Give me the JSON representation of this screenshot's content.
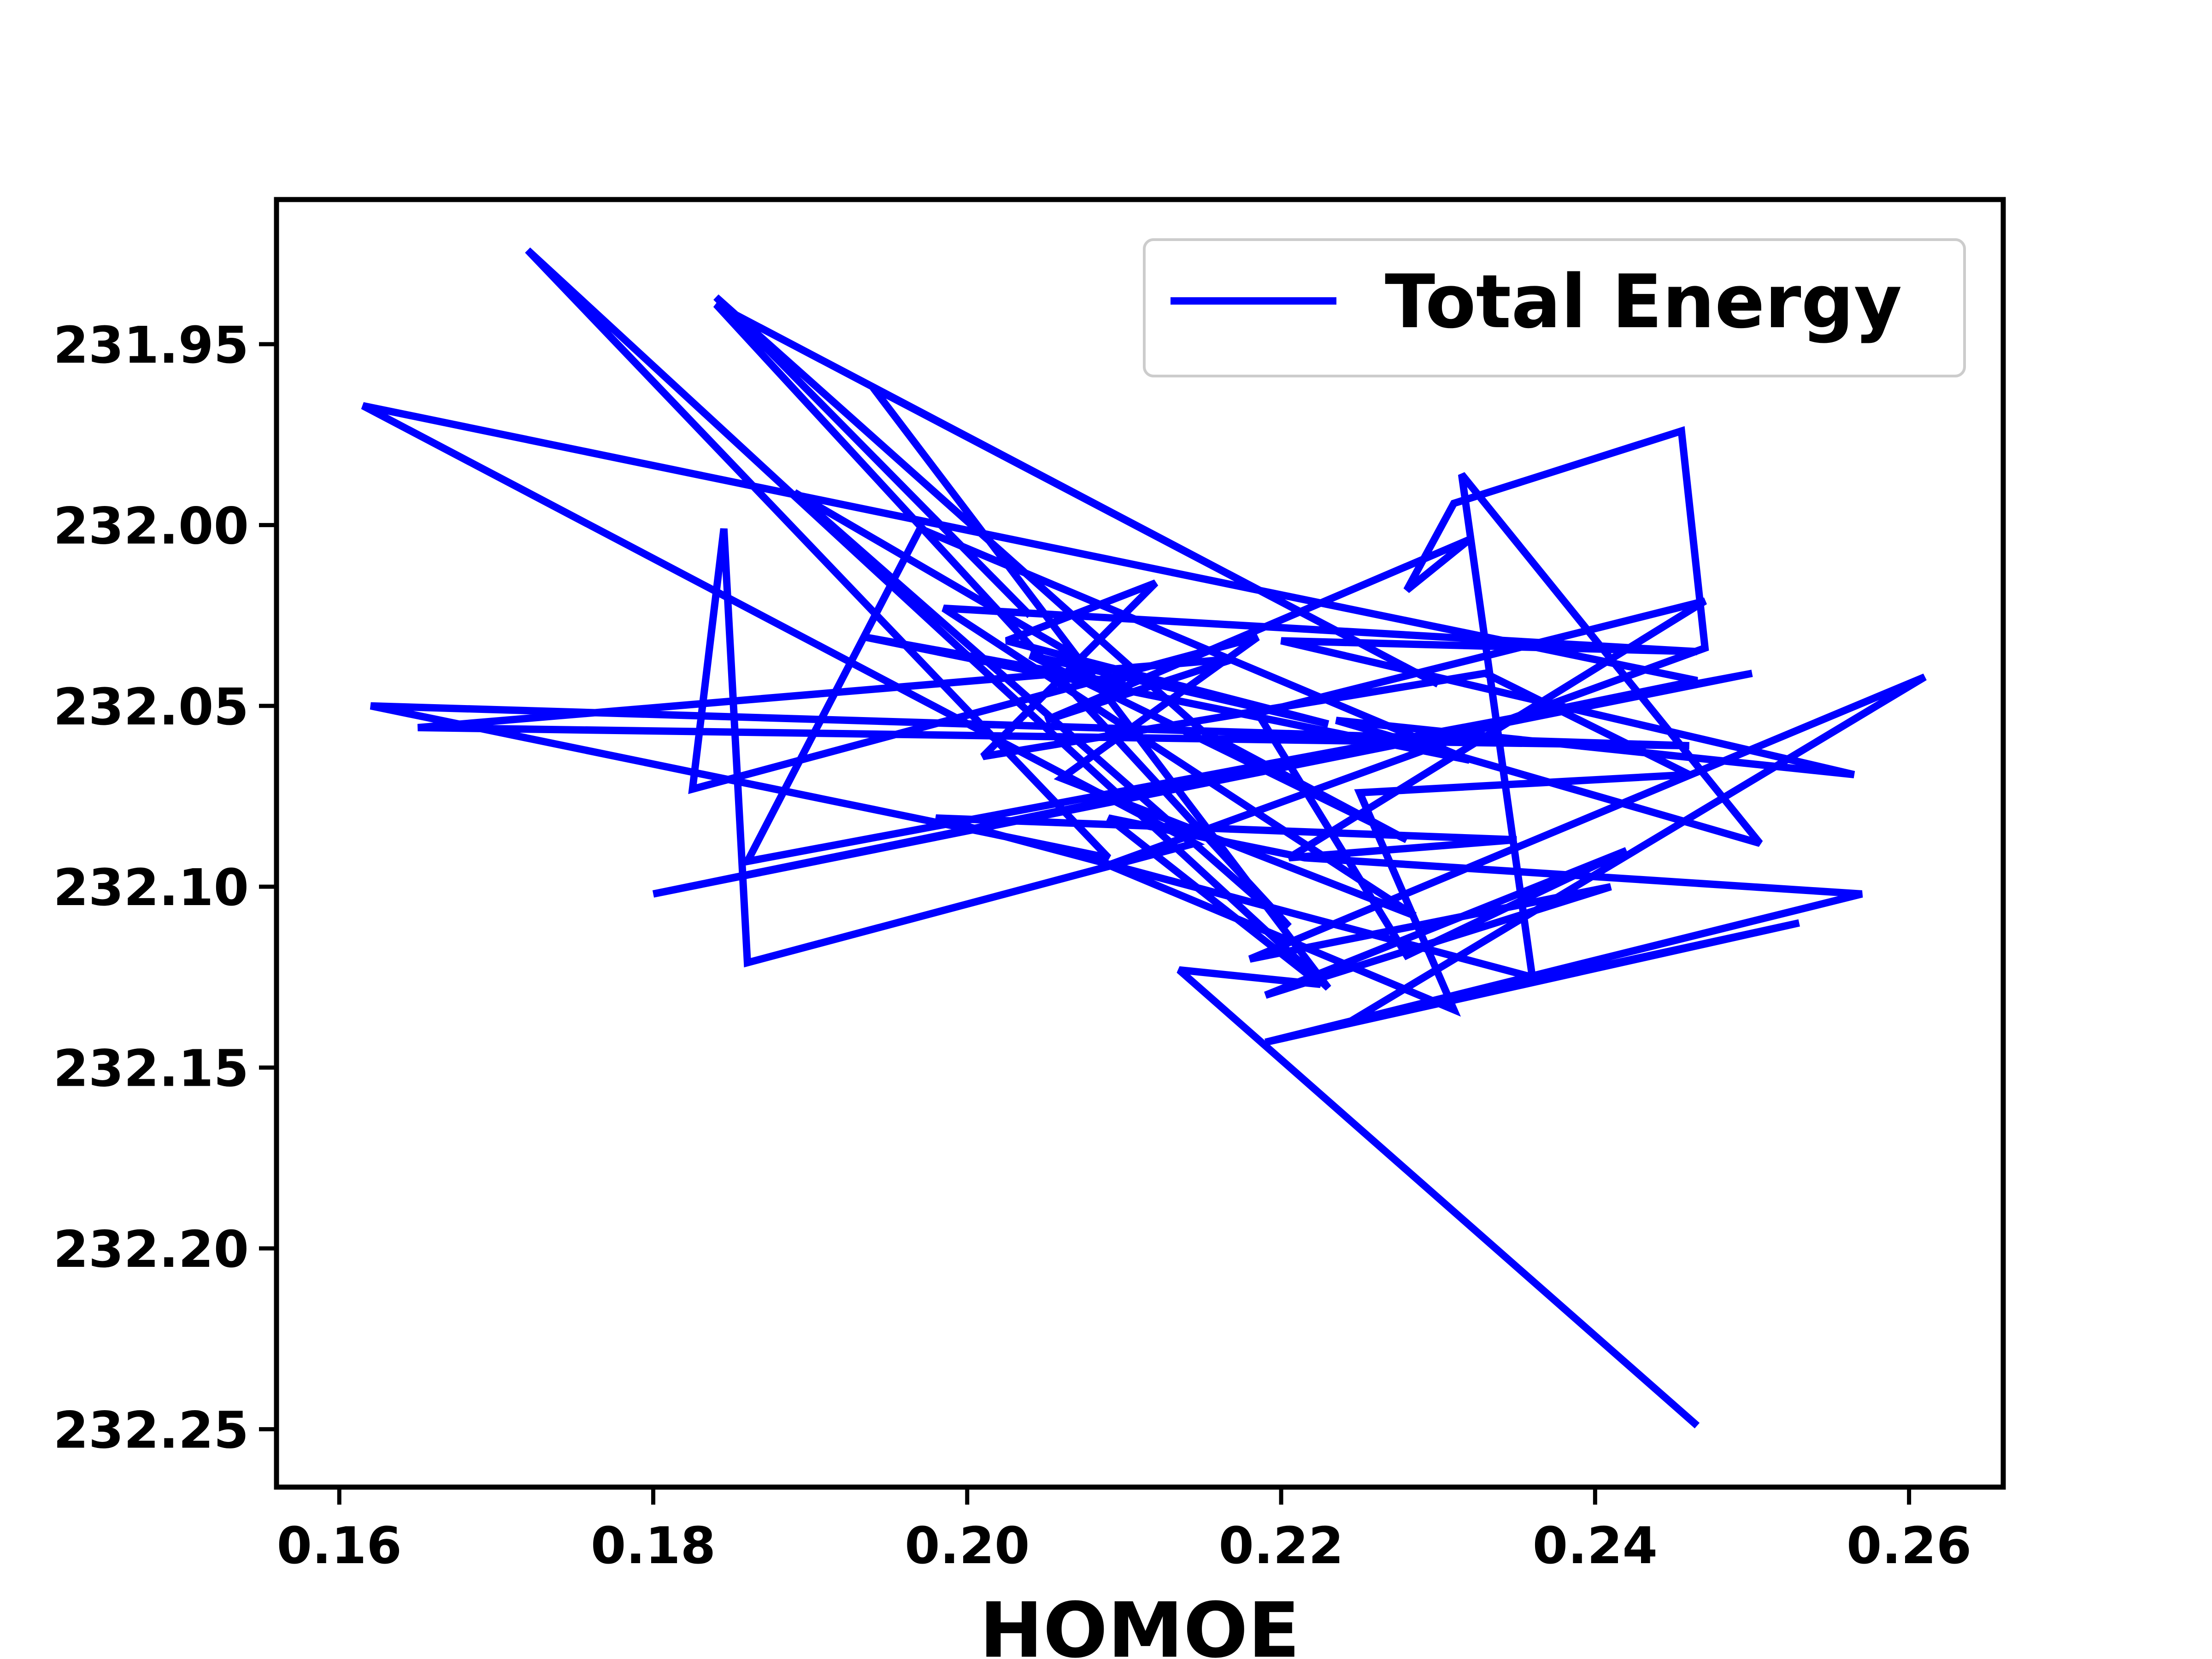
{
  "chart_data": {
    "type": "line",
    "title": "",
    "xlabel": "HOMOE",
    "ylabel": "",
    "xlim": [
      0.156,
      0.266
    ],
    "ylim": [
      232.266,
      231.91
    ],
    "y_inverted": true,
    "x_ticks": [
      0.16,
      0.18,
      0.2,
      0.22,
      0.24,
      0.26
    ],
    "x_tick_labels": [
      "0.16",
      "0.18",
      "0.20",
      "0.22",
      "0.24",
      "0.26"
    ],
    "y_ticks": [
      231.95,
      232.0,
      232.05,
      232.1,
      232.15,
      232.2,
      232.25
    ],
    "y_tick_labels": [
      "231.95",
      "232.00",
      "232.05",
      "232.10",
      "232.15",
      "232.20",
      "232.25"
    ],
    "grid": false,
    "legend_position": "top-right",
    "series": [
      {
        "name": "Total Energy",
        "color": "#0000ff",
        "points": [
          [
            0.2465,
            232.249
          ],
          [
            0.2135,
            232.123
          ],
          [
            0.2225,
            232.127
          ],
          [
            0.209,
            232.081
          ],
          [
            0.2215,
            232.092
          ],
          [
            0.257,
            232.102
          ],
          [
            0.219,
            232.143
          ],
          [
            0.253,
            232.11
          ],
          [
            0.2245,
            232.137
          ],
          [
            0.261,
            232.042
          ],
          [
            0.218,
            232.12
          ],
          [
            0.241,
            232.1
          ],
          [
            0.219,
            232.13
          ],
          [
            0.242,
            232.09
          ],
          [
            0.228,
            232.119
          ],
          [
            0.2185,
            232.052
          ],
          [
            0.247,
            232.021
          ],
          [
            0.2205,
            232.092
          ],
          [
            0.235,
            232.087
          ],
          [
            0.198,
            232.081
          ],
          [
            0.236,
            232.125
          ],
          [
            0.2315,
            231.986
          ],
          [
            0.2505,
            232.088
          ],
          [
            0.2235,
            232.054
          ],
          [
            0.2565,
            232.069
          ],
          [
            0.22,
            232.032
          ],
          [
            0.2465,
            232.035
          ],
          [
            0.1985,
            232.023
          ],
          [
            0.2285,
            232.108
          ],
          [
            0.206,
            232.07
          ],
          [
            0.2185,
            232.031
          ],
          [
            0.1825,
            232.073
          ],
          [
            0.1845,
            232.001
          ],
          [
            0.186,
            232.121
          ],
          [
            0.2145,
            232.088
          ],
          [
            0.1615,
            231.967
          ],
          [
            0.2465,
            232.043
          ],
          [
            0.18,
            232.102
          ],
          [
            0.25,
            232.041
          ],
          [
            0.186,
            232.093
          ],
          [
            0.197,
            232.001
          ],
          [
            0.232,
            232.065
          ],
          [
            0.1935,
            232.031
          ],
          [
            0.21,
            232.044
          ],
          [
            0.189,
            231.991
          ],
          [
            0.2205,
            232.111
          ],
          [
            0.184,
            231.939
          ],
          [
            0.23,
            232.044
          ],
          [
            0.194,
            231.962
          ],
          [
            0.223,
            232.128
          ],
          [
            0.172,
            231.924
          ],
          [
            0.209,
            232.092
          ],
          [
            0.162,
            232.05
          ],
          [
            0.246,
            232.061
          ],
          [
            0.165,
            232.056
          ],
          [
            0.217,
            232.037
          ],
          [
            0.205,
            232.054
          ],
          [
            0.232,
            232.004
          ],
          [
            0.228,
            232.018
          ],
          [
            0.231,
            231.994
          ],
          [
            0.2455,
            231.974
          ],
          [
            0.247,
            232.034
          ],
          [
            0.209,
            232.094
          ],
          [
            0.231,
            232.134
          ],
          [
            0.225,
            232.074
          ],
          [
            0.246,
            232.069
          ],
          [
            0.233,
            232.041
          ],
          [
            0.201,
            232.064
          ],
          [
            0.212,
            232.016
          ],
          [
            0.2025,
            232.032
          ],
          [
            0.223,
            232.055
          ],
          [
            0.204,
            232.036
          ],
          [
            0.228,
            232.087
          ],
          [
            0.215,
            232.057
          ],
          [
            0.184,
            231.937
          ],
          [
            0.204,
            232.025
          ]
        ]
      }
    ]
  }
}
